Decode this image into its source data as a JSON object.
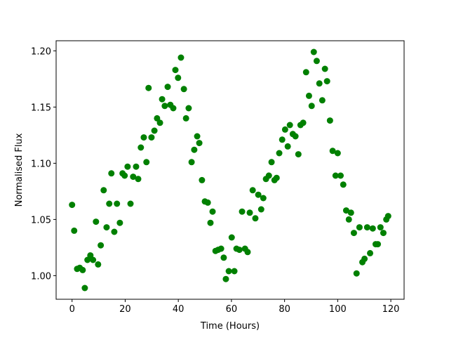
{
  "chart_data": {
    "type": "scatter",
    "xlabel": "Time (Hours)",
    "ylabel": "Normalised Flux",
    "color": "#008000",
    "x": [
      0,
      0.8,
      1.9,
      2.9,
      4.0,
      4.8,
      5.8,
      6.9,
      7.9,
      9.0,
      9.8,
      10.8,
      11.9,
      13.0,
      14.0,
      14.8,
      15.9,
      16.9,
      18.0,
      19.0,
      19.8,
      20.9,
      22.0,
      23.0,
      24.1,
      24.9,
      25.9,
      27.0,
      28.0,
      28.8,
      29.9,
      31.0,
      32.0,
      33.1,
      33.9,
      34.9,
      36.0,
      37.0,
      38.1,
      38.9,
      39.9,
      41.0,
      42.1,
      42.9,
      43.9,
      45.0,
      46.0,
      47.1,
      47.9,
      48.9,
      50.0,
      51.1,
      52.1,
      52.9,
      54.0,
      55.0,
      56.1,
      57.1,
      57.9,
      59.0,
      60.1,
      61.1,
      61.9,
      63.0,
      64.0,
      65.1,
      66.1,
      66.9,
      68.0,
      69.0,
      70.1,
      71.2,
      72.0,
      73.0,
      74.1,
      75.1,
      76.2,
      77.0,
      78.0,
      79.1,
      80.2,
      81.2,
      82.0,
      83.1,
      84.1,
      85.2,
      86.0,
      87.0,
      88.1,
      89.2,
      90.2,
      91.0,
      92.1,
      93.1,
      94.2,
      95.2,
      96.0,
      97.1,
      98.1,
      99.2,
      100.0,
      101.1,
      102.1,
      103.2,
      104.2,
      105.0,
      106.1,
      107.1,
      108.2,
      109.3,
      110.1,
      111.1,
      112.2,
      113.2,
      114.3,
      115.1,
      116.1,
      117.2,
      118.3,
      119.0
    ],
    "values": [
      1.063,
      1.04,
      1.006,
      1.007,
      1.005,
      0.989,
      1.014,
      1.018,
      1.014,
      1.048,
      1.01,
      1.027,
      1.076,
      1.043,
      1.064,
      1.091,
      1.039,
      1.064,
      1.047,
      1.091,
      1.089,
      1.097,
      1.064,
      1.088,
      1.097,
      1.086,
      1.114,
      1.123,
      1.101,
      1.167,
      1.123,
      1.129,
      1.14,
      1.136,
      1.157,
      1.151,
      1.168,
      1.152,
      1.149,
      1.183,
      1.176,
      1.194,
      1.166,
      1.14,
      1.149,
      1.101,
      1.112,
      1.124,
      1.118,
      1.085,
      1.066,
      1.065,
      1.047,
      1.057,
      1.022,
      1.023,
      1.024,
      1.016,
      0.997,
      1.004,
      1.034,
      1.004,
      1.024,
      1.023,
      1.057,
      1.024,
      1.021,
      1.056,
      1.076,
      1.051,
      1.072,
      1.059,
      1.069,
      1.086,
      1.089,
      1.101,
      1.085,
      1.087,
      1.109,
      1.121,
      1.13,
      1.115,
      1.134,
      1.126,
      1.124,
      1.108,
      1.134,
      1.136,
      1.181,
      1.16,
      1.151,
      1.199,
      1.191,
      1.171,
      1.156,
      1.184,
      1.173,
      1.138,
      1.111,
      1.089,
      1.109,
      1.089,
      1.081,
      1.058,
      1.05,
      1.056,
      1.038,
      1.002,
      1.043,
      1.012,
      1.015,
      1.043,
      1.02,
      1.042,
      1.028,
      1.028,
      1.043,
      1.038,
      1.05,
      1.053
    ],
    "xlim": [
      -6,
      125
    ],
    "ylim": [
      0.979,
      1.209
    ],
    "xticks": [
      0,
      20,
      40,
      60,
      80,
      100,
      120
    ],
    "yticks": [
      {
        "value": 1.0,
        "label": "1.00"
      },
      {
        "value": 1.05,
        "label": "1.05"
      },
      {
        "value": 1.1,
        "label": "1.10"
      },
      {
        "value": 1.15,
        "label": "1.15"
      },
      {
        "value": 1.2,
        "label": "1.20"
      }
    ]
  }
}
